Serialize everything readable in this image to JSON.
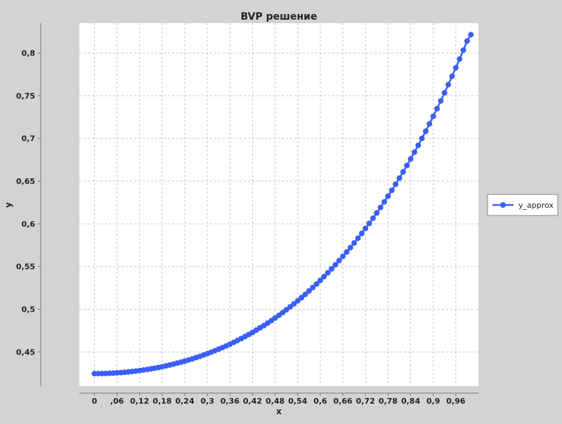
{
  "chart_data": {
    "type": "line",
    "title": "BVP решение",
    "xlabel": "x",
    "ylabel": "y",
    "xlim": [
      -0.04,
      1.02
    ],
    "ylim": [
      0.41,
      0.835
    ],
    "x_ticks": [
      0,
      0.06,
      0.12,
      0.18,
      0.24,
      0.3,
      0.36,
      0.42,
      0.48,
      0.54,
      0.6,
      0.66,
      0.72,
      0.78,
      0.84,
      0.9,
      0.96
    ],
    "x_tick_labels": [
      "0",
      ",06",
      "0,12",
      "0,18",
      "0,24",
      "0,3",
      "0,36",
      "0,42",
      "0,48",
      "0,54",
      "0,6",
      "0,66",
      "0,72",
      "0,78",
      "0,84",
      "0,9",
      "0,96"
    ],
    "y_ticks": [
      0.45,
      0.5,
      0.55,
      0.6,
      0.65,
      0.7,
      0.75,
      0.8
    ],
    "y_tick_labels": [
      "0,45",
      "0,5",
      "0,55",
      "0,6",
      "0,65",
      "0,7",
      "0,75",
      "0,8"
    ],
    "grid": true,
    "legend_position": "right",
    "series": [
      {
        "name": "y_approx",
        "color": "#3a5ff5",
        "marker": "circle",
        "x": [
          0,
          0.01,
          0.02,
          0.03,
          0.04,
          0.05,
          0.06,
          0.07,
          0.08,
          0.09,
          0.1,
          0.11,
          0.12,
          0.13,
          0.14,
          0.15,
          0.16,
          0.17,
          0.18,
          0.19,
          0.2,
          0.21,
          0.22,
          0.23,
          0.24,
          0.25,
          0.26,
          0.27,
          0.28,
          0.29,
          0.3,
          0.31,
          0.32,
          0.33,
          0.34,
          0.35,
          0.36,
          0.37,
          0.38,
          0.39,
          0.4,
          0.41,
          0.42,
          0.43,
          0.44,
          0.45,
          0.46,
          0.47,
          0.48,
          0.49,
          0.5,
          0.51,
          0.52,
          0.53,
          0.54,
          0.55,
          0.56,
          0.57,
          0.58,
          0.59,
          0.6,
          0.61,
          0.62,
          0.63,
          0.64,
          0.65,
          0.66,
          0.67,
          0.68,
          0.69,
          0.7,
          0.71,
          0.72,
          0.73,
          0.74,
          0.75,
          0.76,
          0.77,
          0.78,
          0.79,
          0.8,
          0.81,
          0.82,
          0.83,
          0.84,
          0.85,
          0.86,
          0.87,
          0.88,
          0.89,
          0.9,
          0.91,
          0.92,
          0.93,
          0.94,
          0.95,
          0.96,
          0.97,
          0.98,
          0.99,
          1.0
        ],
        "y": [
          0.4246,
          0.4246,
          0.4247,
          0.4248,
          0.425,
          0.4252,
          0.4255,
          0.4258,
          0.4262,
          0.4266,
          0.4271,
          0.4276,
          0.4282,
          0.4288,
          0.4295,
          0.4302,
          0.431,
          0.4318,
          0.4327,
          0.4337,
          0.4347,
          0.4357,
          0.4369,
          0.438,
          0.4393,
          0.4406,
          0.4419,
          0.4434,
          0.4448,
          0.4464,
          0.448,
          0.4497,
          0.4514,
          0.4532,
          0.4551,
          0.4571,
          0.4591,
          0.4612,
          0.4634,
          0.4657,
          0.468,
          0.4704,
          0.4729,
          0.4755,
          0.4782,
          0.4809,
          0.4838,
          0.4867,
          0.4897,
          0.4929,
          0.4961,
          0.4994,
          0.5028,
          0.5063,
          0.5099,
          0.5136,
          0.5174,
          0.5214,
          0.5254,
          0.5295,
          0.5338,
          0.5382,
          0.5427,
          0.5473,
          0.552,
          0.5569,
          0.5619,
          0.567,
          0.5722,
          0.5776,
          0.5831,
          0.5888,
          0.5946,
          0.6005,
          0.6066,
          0.6128,
          0.6192,
          0.6257,
          0.6324,
          0.6393,
          0.6463,
          0.6535,
          0.6608,
          0.6683,
          0.676,
          0.6839,
          0.6919,
          0.7001,
          0.7085,
          0.7171,
          0.7259,
          0.7349,
          0.744,
          0.7534,
          0.763,
          0.7728,
          0.7828,
          0.793,
          0.8034,
          0.8141,
          0.8215
        ]
      }
    ]
  }
}
